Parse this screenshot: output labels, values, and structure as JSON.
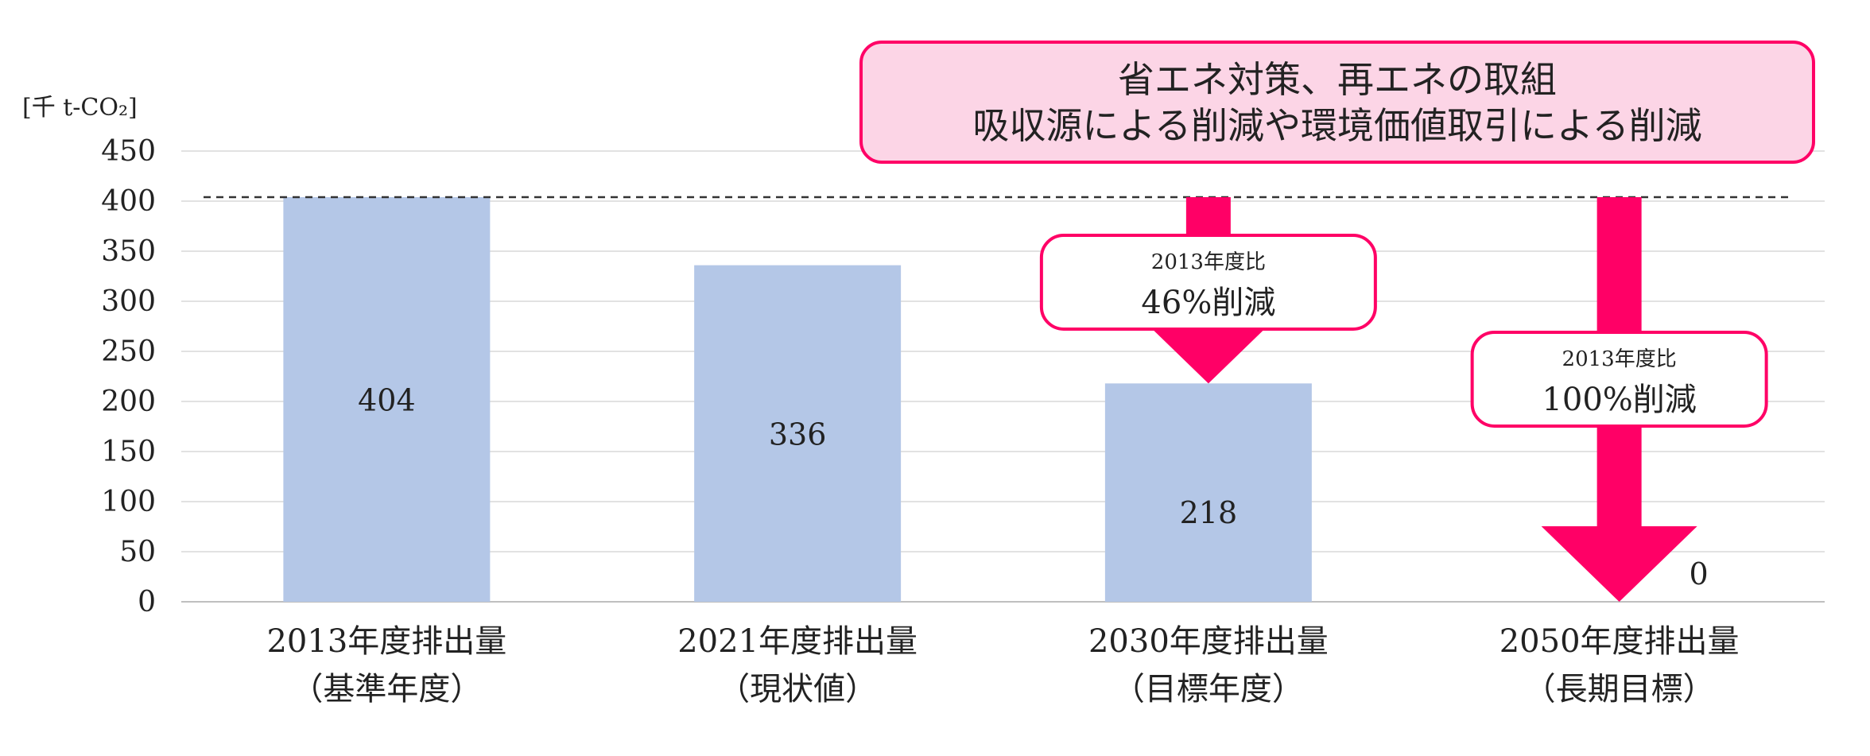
{
  "chart_data": {
    "type": "bar",
    "unit_label": "[千 t-CO₂]",
    "categories": [
      [
        "2013年度排出量",
        "（基準年度）"
      ],
      [
        "2021年度排出量",
        "（現状値）"
      ],
      [
        "2030年度排出量",
        "（目標年度）"
      ],
      [
        "2050年度排出量",
        "（長期目標）"
      ]
    ],
    "values": [
      404,
      336,
      218,
      0
    ],
    "value_labels": [
      "404",
      "336",
      "218",
      "0"
    ],
    "ylim": [
      0,
      450
    ],
    "yticks": [
      0,
      50,
      100,
      150,
      200,
      250,
      300,
      350,
      400,
      450
    ],
    "grid": true,
    "reference_line": {
      "value": 404,
      "style": "dashed"
    },
    "bar_color": "#b4c7e7",
    "accent_color": "#ff0066",
    "banner": {
      "lines": [
        "省エネ対策、再エネの取組",
        "吸収源による削減や環境価値取引による削減"
      ],
      "fill": "#fcd5e6"
    },
    "arrows": [
      {
        "category_index": 2,
        "from": 404,
        "to": 218,
        "callout_small": "2013年度比",
        "callout_big": "46%削減"
      },
      {
        "category_index": 3,
        "from": 404,
        "to": 0,
        "callout_small": "2013年度比",
        "callout_big": "100%削減"
      }
    ]
  }
}
